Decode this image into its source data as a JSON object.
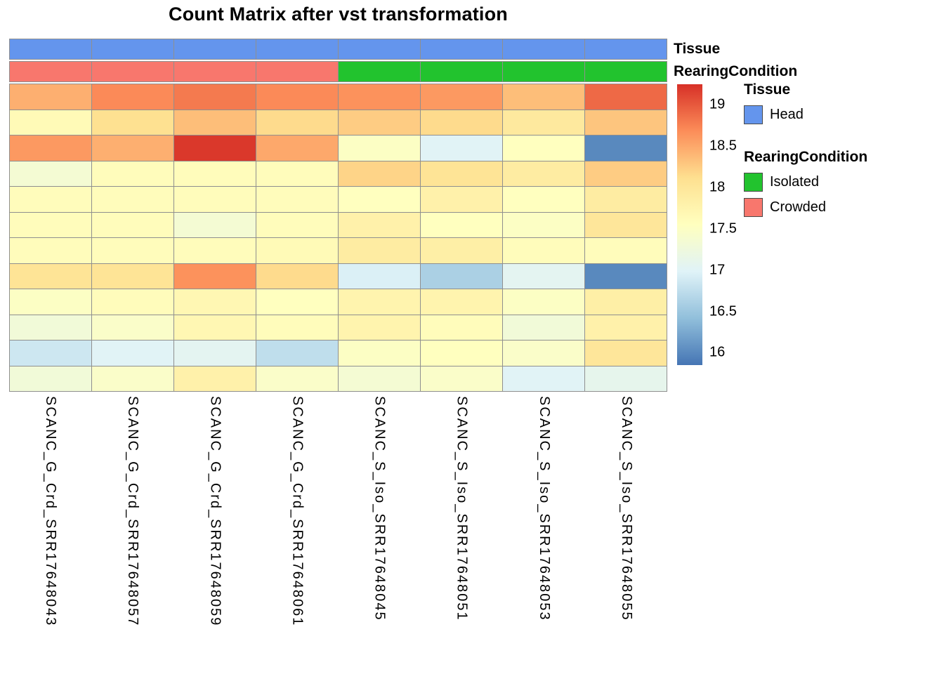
{
  "title": "Count Matrix after vst transformation",
  "annotation_labels": {
    "tissue": "Tissue",
    "rearing": "RearingCondition"
  },
  "legends": {
    "tissue": {
      "title": "Tissue",
      "items": [
        {
          "label": "Head",
          "color": "#6495ED"
        }
      ]
    },
    "rearing": {
      "title": "RearingCondition",
      "items": [
        {
          "label": "Isolated",
          "color": "#22C32E"
        },
        {
          "label": "Crowded",
          "color": "#F8776D"
        }
      ]
    }
  },
  "chart_data": {
    "type": "heatmap",
    "title": "Count Matrix after vst transformation",
    "columns": [
      "SCANC_G_Crd_SRR17648043",
      "SCANC_G_Crd_SRR17648057",
      "SCANC_G_Crd_SRR17648059",
      "SCANC_G_Crd_SRR17648061",
      "SCANC_S_Iso_SRR17648045",
      "SCANC_S_Iso_SRR17648051",
      "SCANC_S_Iso_SRR17648053",
      "SCANC_S_Iso_SRR17648055"
    ],
    "column_annotations": {
      "Tissue": [
        "Head",
        "Head",
        "Head",
        "Head",
        "Head",
        "Head",
        "Head",
        "Head"
      ],
      "RearingCondition": [
        "Crowded",
        "Crowded",
        "Crowded",
        "Crowded",
        "Isolated",
        "Isolated",
        "Isolated",
        "Isolated"
      ]
    },
    "annotation_colors": {
      "Head": "#6495ED",
      "Isolated": "#22C32E",
      "Crowded": "#F8776D"
    },
    "values": [
      [
        18.45,
        18.7,
        18.8,
        18.7,
        18.65,
        18.6,
        18.35,
        18.9
      ],
      [
        17.65,
        18.1,
        18.35,
        18.15,
        18.25,
        18.15,
        17.95,
        18.3
      ],
      [
        18.6,
        18.45,
        19.2,
        18.5,
        17.5,
        17.0,
        17.55,
        16.0
      ],
      [
        17.35,
        17.6,
        17.6,
        17.6,
        18.2,
        18.05,
        17.9,
        18.25
      ],
      [
        17.6,
        17.6,
        17.6,
        17.6,
        17.55,
        17.8,
        17.55,
        17.9
      ],
      [
        17.6,
        17.6,
        17.35,
        17.6,
        17.8,
        17.55,
        17.5,
        18.0
      ],
      [
        17.6,
        17.6,
        17.6,
        17.65,
        17.9,
        17.85,
        17.6,
        17.6
      ],
      [
        18.05,
        18.05,
        18.65,
        18.15,
        16.95,
        16.6,
        17.05,
        16.0
      ],
      [
        17.5,
        17.6,
        17.7,
        17.55,
        17.75,
        17.75,
        17.5,
        17.85
      ],
      [
        17.3,
        17.45,
        17.7,
        17.6,
        17.75,
        17.6,
        17.3,
        17.8
      ],
      [
        16.85,
        17.0,
        17.05,
        16.75,
        17.5,
        17.55,
        17.45,
        18.0
      ],
      [
        17.3,
        17.45,
        17.8,
        17.45,
        17.35,
        17.45,
        17.0,
        17.1
      ]
    ],
    "scale": {
      "vmin": 15.85,
      "vmax": 19.25,
      "ticks": [
        19,
        18.5,
        18,
        17.5,
        17,
        16.5,
        16
      ],
      "color_stops": [
        "#4575b4",
        "#91bfdb",
        "#e0f3f8",
        "#ffffbf",
        "#fee090",
        "#fc8d59",
        "#d73027"
      ]
    },
    "grid": true,
    "legend_position": "right"
  }
}
